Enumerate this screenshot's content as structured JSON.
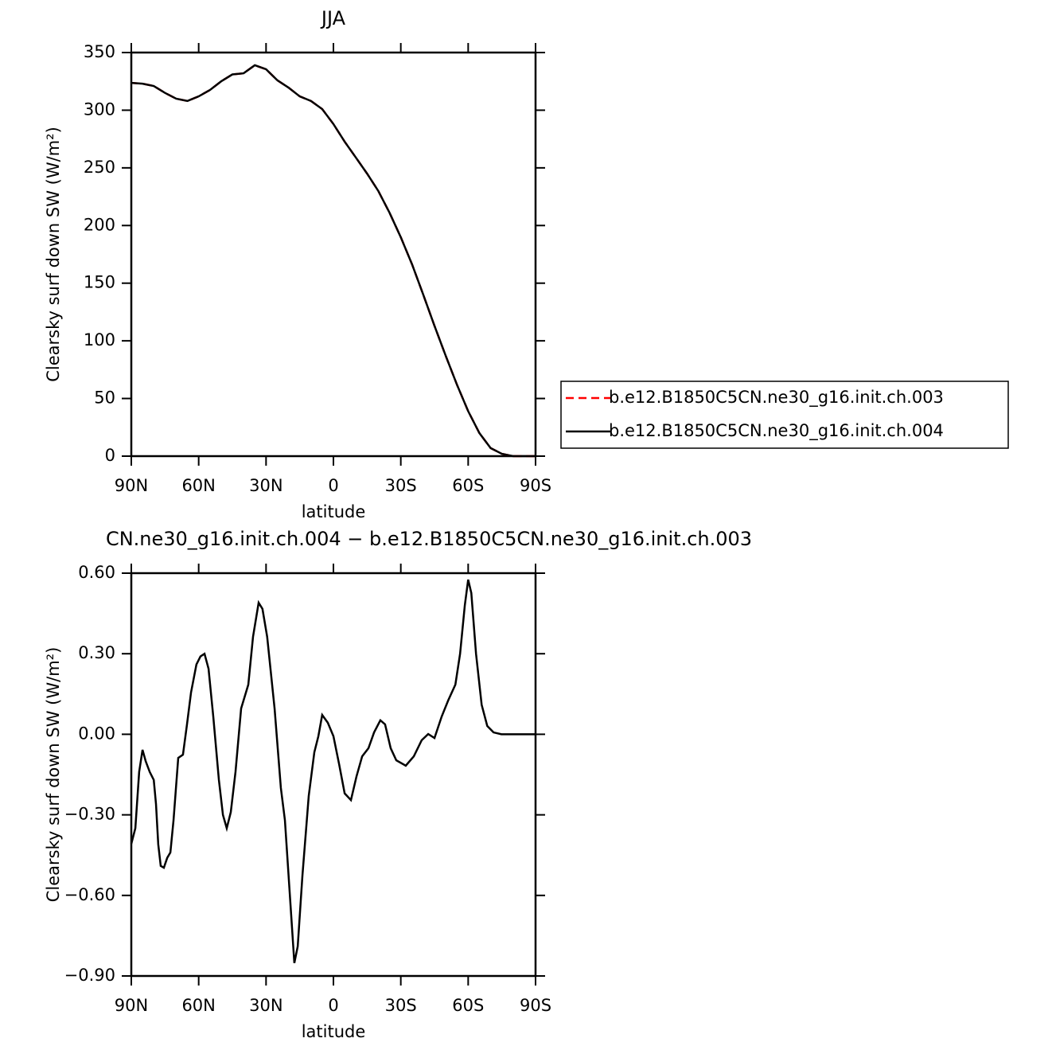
{
  "chart_data": [
    {
      "type": "line",
      "title": "JJA",
      "x_label": "latitude",
      "y_label": "Clearsky surf down SW (W/m²)",
      "x": [
        90,
        85,
        80,
        75,
        70,
        65,
        60,
        55,
        50,
        45,
        40,
        35,
        30,
        25,
        20,
        15,
        10,
        5,
        0,
        -5,
        -10,
        -15,
        -20,
        -25,
        -30,
        -35,
        -40,
        -45,
        -50,
        -55,
        -60,
        -65,
        -70,
        -75,
        -80,
        -85,
        -90
      ],
      "series": [
        {
          "name": "b.e12.B1850C5CN.ne30_g16.init.ch.003",
          "color": "#ff0000",
          "line_style": "dashed",
          "values": [
            323.7,
            323,
            321,
            315,
            310,
            308,
            312,
            317.5,
            325,
            331,
            332,
            339,
            335.5,
            326,
            319.6,
            312,
            308,
            301,
            288,
            272.7,
            258.9,
            245,
            229.9,
            211,
            189.8,
            166.4,
            140,
            113,
            87,
            62,
            39,
            20,
            7,
            2,
            0,
            0,
            0
          ]
        },
        {
          "name": "b.e12.B1850C5CN.ne30_g16.init.ch.004",
          "color": "#000000",
          "line_style": "solid",
          "values": [
            323.7,
            323,
            321,
            315,
            310,
            308,
            312,
            317.5,
            325,
            331,
            332,
            339,
            335.5,
            326,
            319.6,
            312,
            308,
            301,
            288,
            272.7,
            258.9,
            245,
            229.9,
            211,
            189.8,
            166.4,
            140,
            113,
            87,
            62,
            39,
            20,
            7,
            2,
            0,
            0,
            0
          ]
        }
      ],
      "xlim": [
        90,
        -90
      ],
      "xticks": [
        {
          "value": 90,
          "label": "90N"
        },
        {
          "value": 60,
          "label": "60N"
        },
        {
          "value": 30,
          "label": "30N"
        },
        0,
        {
          "value": -30,
          "label": "30S"
        },
        {
          "value": -60,
          "label": "60S"
        },
        {
          "value": -90,
          "label": "90S"
        }
      ],
      "ylim": [
        0,
        350
      ],
      "yticks": [
        0,
        50,
        100,
        150,
        200,
        250,
        300,
        350
      ],
      "legend_position": "right"
    },
    {
      "type": "line",
      "title": "CN.ne30_g16.init.ch.004 − b.e12.B1850C5CN.ne30_g16.init.ch.003",
      "x_label": "latitude",
      "y_label": "Clearsky surf down SW (W/m²)",
      "x": [
        90,
        88.2,
        86.5,
        85,
        83.6,
        81.8,
        80,
        79,
        78,
        76.9,
        75.5,
        74,
        72.6,
        71.2,
        69.1,
        67,
        65.2,
        63.4,
        61,
        59.2,
        57.4,
        55.6,
        53.5,
        51,
        49.2,
        47.5,
        45.7,
        43.6,
        41.1,
        37.9,
        35.8,
        33.3,
        31.6,
        29.5,
        26.2,
        23.4,
        21.6,
        19.5,
        17.4,
        15.9,
        13.8,
        11,
        8.5,
        6.7,
        5,
        2.5,
        0,
        -2.5,
        -5,
        -7.8,
        -10.3,
        -12.8,
        -15.6,
        -18.1,
        -20.9,
        -23,
        -25.5,
        -28,
        -32.2,
        -35.8,
        -39.3,
        -42.2,
        -45,
        -48.2,
        -51.1,
        -54.3,
        -56.4,
        -58.5,
        -60,
        -61.4,
        -63.5,
        -66,
        -68.5,
        -71.3,
        -74.8,
        -90
      ],
      "series": [
        {
          "color": "#000000",
          "line_style": "solid",
          "values": [
            -0.408,
            -0.35,
            -0.14,
            -0.058,
            -0.1,
            -0.14,
            -0.17,
            -0.26,
            -0.41,
            -0.49,
            -0.497,
            -0.46,
            -0.44,
            -0.32,
            -0.088,
            -0.076,
            0.037,
            0.156,
            0.26,
            0.29,
            0.3,
            0.244,
            0.066,
            -0.17,
            -0.3,
            -0.35,
            -0.29,
            -0.14,
            0.096,
            0.185,
            0.363,
            0.49,
            0.467,
            0.363,
            0.096,
            -0.2,
            -0.32,
            -0.586,
            -0.852,
            -0.79,
            -0.526,
            -0.23,
            -0.067,
            -0.007,
            0.072,
            0.043,
            -0.007,
            -0.11,
            -0.22,
            -0.245,
            -0.156,
            -0.082,
            -0.052,
            0.007,
            0.052,
            0.037,
            -0.052,
            -0.097,
            -0.117,
            -0.082,
            -0.022,
            0.001,
            -0.014,
            0.066,
            0.126,
            0.185,
            0.3,
            0.48,
            0.576,
            0.526,
            0.3,
            0.11,
            0.031,
            0.007,
            0,
            0
          ]
        }
      ],
      "xlim": [
        90,
        -90
      ],
      "xticks": [
        {
          "value": 90,
          "label": "90N"
        },
        {
          "value": 60,
          "label": "60N"
        },
        {
          "value": 30,
          "label": "30N"
        },
        0,
        {
          "value": -30,
          "label": "30S"
        },
        {
          "value": -60,
          "label": "60S"
        },
        {
          "value": -90,
          "label": "90S"
        }
      ],
      "ylim": [
        -0.9,
        0.6
      ],
      "yticks": [
        {
          "value": -0.9,
          "label": "−0.90"
        },
        {
          "value": -0.6,
          "label": "−0.60"
        },
        {
          "value": -0.3,
          "label": "−0.30"
        },
        {
          "value": 0,
          "label": "0.00"
        },
        {
          "value": 0.3,
          "label": "0.30"
        },
        {
          "value": 0.6,
          "label": "0.60"
        }
      ]
    }
  ]
}
